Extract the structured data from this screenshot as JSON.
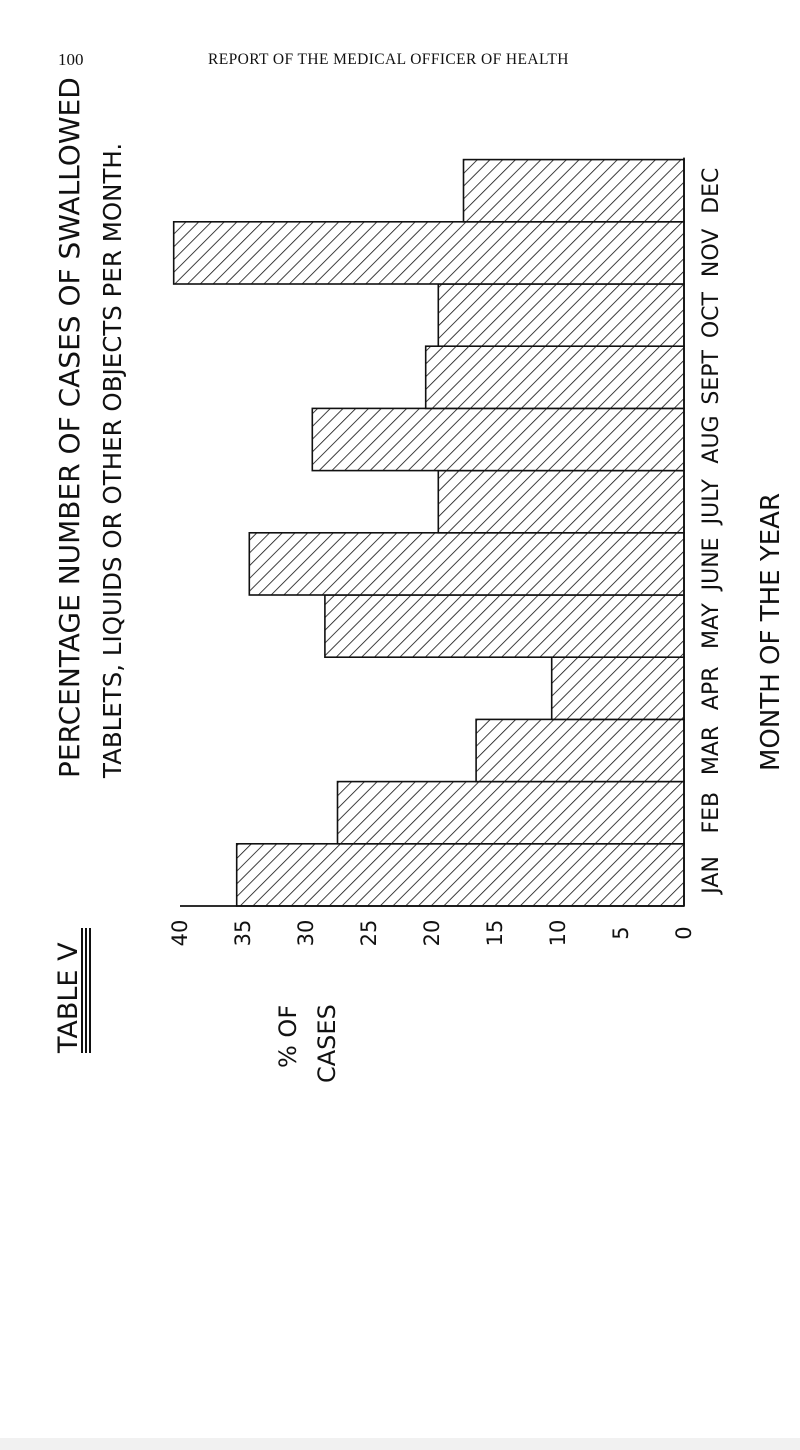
{
  "header": {
    "page_number": "100",
    "running_head": "REPORT OF THE MEDICAL OFFICER OF HEALTH"
  },
  "figure": {
    "table_label": "TABLE V",
    "title_line1": "PERCENTAGE NUMBER OF CASES OF SWALLOWED",
    "title_line2": "TABLETS, LIQUIDS OR OTHER OBJECTS PER MONTH."
  },
  "chart_data": {
    "type": "bar",
    "orientation": "rotated",
    "categories": [
      "JAN",
      "FEB",
      "MAR",
      "APR",
      "MAY",
      "JUNE",
      "JULY",
      "AUG",
      "SEPT",
      "OCT",
      "NOV",
      "DEC"
    ],
    "values": [
      35.5,
      27.5,
      16.5,
      10.5,
      28.5,
      34.5,
      19.5,
      29.5,
      20.5,
      19.5,
      40.5,
      17.5
    ],
    "y_ticks": [
      "40",
      "35",
      "30",
      "25",
      "20",
      "15",
      "10",
      "5",
      "0"
    ],
    "ylabel_line1": "% OF",
    "ylabel_line2": "CASES",
    "xlabel": "MONTH OF THE YEAR",
    "ylim": [
      0,
      40
    ],
    "bar_fill": "hatched",
    "colors": {
      "ink": "#111111",
      "paper": "#ffffff"
    }
  }
}
